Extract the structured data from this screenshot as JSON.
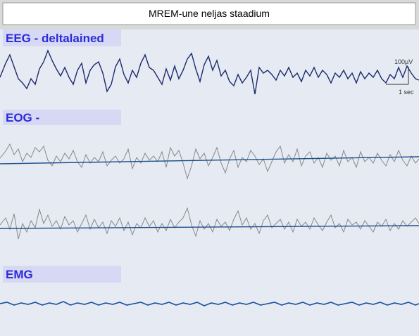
{
  "header": {
    "title": "MREM-une neljas staadium"
  },
  "channels": [
    {
      "label": "EEG - deltalained"
    },
    {
      "label": "EOG -"
    },
    {
      "label": "EMG"
    }
  ],
  "scale": {
    "amplitude": "100µV",
    "time": "1 sec"
  }
}
